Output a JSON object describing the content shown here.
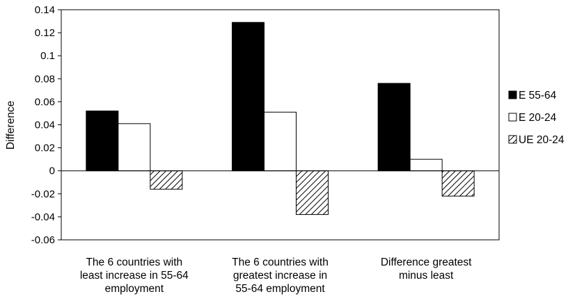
{
  "chart_data": {
    "type": "bar",
    "title": "",
    "xlabel": "",
    "ylabel": "Difference",
    "ylim": [
      -0.06,
      0.14
    ],
    "yticks": [
      {
        "value": 0.14,
        "label": "0.14"
      },
      {
        "value": 0.12,
        "label": "0.12"
      },
      {
        "value": 0.1,
        "label": "0.1"
      },
      {
        "value": 0.08,
        "label": "0.08"
      },
      {
        "value": 0.06,
        "label": "0.06"
      },
      {
        "value": 0.04,
        "label": "0.04"
      },
      {
        "value": 0.02,
        "label": "0.02"
      },
      {
        "value": 0,
        "label": "0"
      },
      {
        "value": -0.02,
        "label": "-0.02"
      },
      {
        "value": -0.04,
        "label": "-0.04"
      },
      {
        "value": -0.06,
        "label": "-0.06"
      }
    ],
    "grid": false,
    "legend_position": "right",
    "categories": [
      [
        "The 6 countries with",
        "least increase in 55-64",
        "employment"
      ],
      [
        "The 6 countries with",
        "greatest increase in",
        "55-64 employment"
      ],
      [
        "Difference greatest",
        "minus least"
      ]
    ],
    "series": [
      {
        "name": "E 55-64",
        "fill": "solid",
        "color": "#000000",
        "values": [
          0.052,
          0.129,
          0.076
        ]
      },
      {
        "name": "E 20-24",
        "fill": "white",
        "color": "#ffffff",
        "values": [
          0.041,
          0.051,
          0.01
        ]
      },
      {
        "name": "UE 20-24",
        "fill": "hatch",
        "color": "#000000",
        "values": [
          -0.016,
          -0.038,
          -0.022
        ]
      }
    ]
  }
}
